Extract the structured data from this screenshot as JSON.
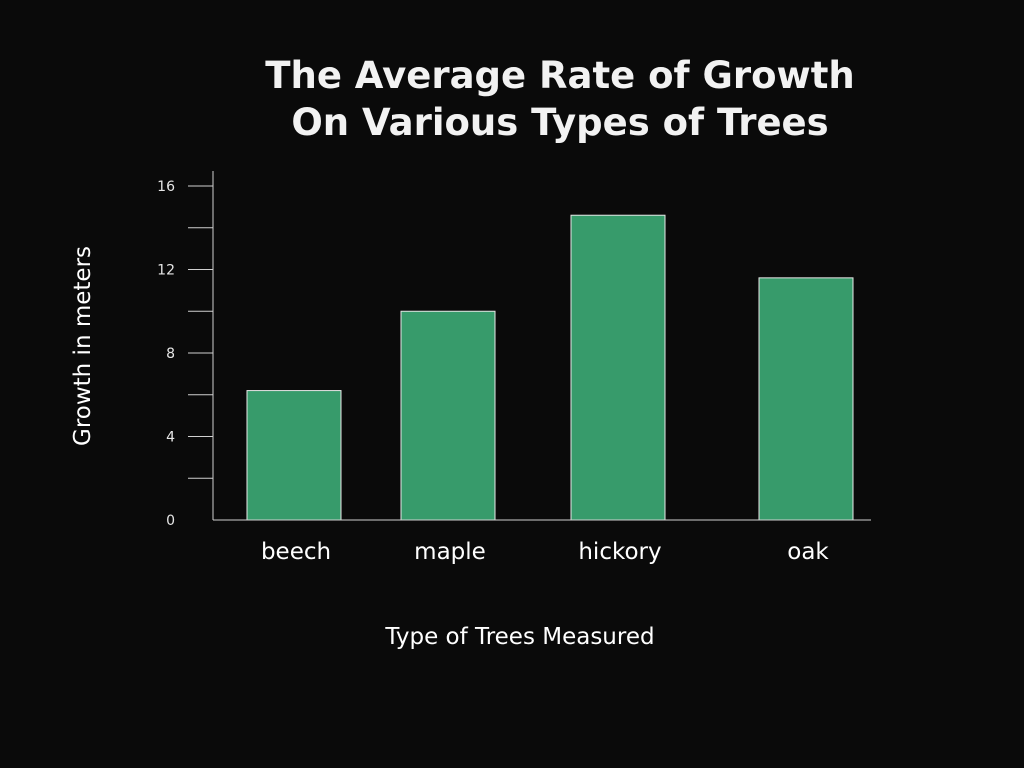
{
  "chart_data": {
    "type": "bar",
    "title_lines": [
      "The Average Rate of Growth",
      "On Various Types of Trees"
    ],
    "xlabel": "Type of Trees Measured",
    "ylabel": "Growth in meters",
    "categories": [
      "beech",
      "maple",
      "hickory",
      "oak"
    ],
    "values": [
      6.2,
      10.0,
      14.6,
      11.6
    ],
    "ylim": [
      0,
      16
    ],
    "yticks": [
      0,
      4,
      8,
      12,
      16
    ],
    "minor_yticks": [
      2,
      6,
      10,
      14
    ],
    "grid": false,
    "legend": "none",
    "bar_color": "#379b6b",
    "bar_edge_color": "#e8e8e8",
    "background": "#0a0a0a"
  }
}
